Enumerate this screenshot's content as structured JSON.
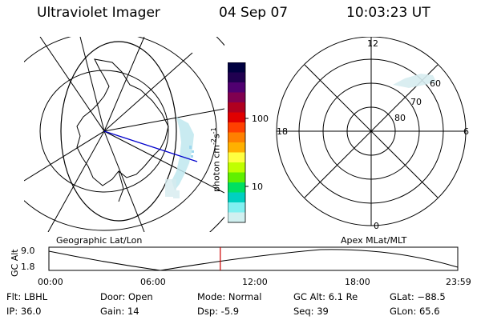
{
  "header": {
    "title": "Ultraviolet Imager",
    "date": "04 Sep 07",
    "time": "10:03:23 UT"
  },
  "geo_map": {
    "label": "Geographic Lat/Lon"
  },
  "colorbar": {
    "unit_label": "photon cm-2s-1",
    "tick_labels": [
      "100",
      "10"
    ],
    "colors_top_to_bottom": [
      "#000040",
      "#200050",
      "#500070",
      "#800050",
      "#b00020",
      "#e00000",
      "#ff4000",
      "#ff8000",
      "#ffb000",
      "#ffff40",
      "#c0ff00",
      "#60f000",
      "#00e060",
      "#00d0c0",
      "#80f0f0",
      "#d0f0f0"
    ]
  },
  "polar_plot": {
    "label": "Apex MLat/MLT",
    "mlt_labels": [
      "12",
      "18",
      "6",
      "0"
    ],
    "mlat_labels": [
      "60",
      "70",
      "80"
    ]
  },
  "timeline": {
    "y_axis_title": "GC Alt",
    "y_tick_labels": [
      "9.0",
      "1.8"
    ],
    "x_tick_labels": [
      "00:00",
      "06:00",
      "12:00",
      "18:00",
      "23:59"
    ],
    "current_time_hours": 10.06,
    "marker_color": "#cc0000"
  },
  "info": {
    "flt": "Flt: LBHL",
    "ip": "IP: 36.0",
    "door": "Door: Open",
    "gain": "Gain: 14",
    "mode": "Mode: Normal",
    "dsp": "Dsp:    -5.9",
    "gc_alt": "GC Alt: 6.1 Re",
    "seq": "Seq: 39",
    "glat": "GLat: −88.5",
    "glon": "GLon:   65.6"
  }
}
